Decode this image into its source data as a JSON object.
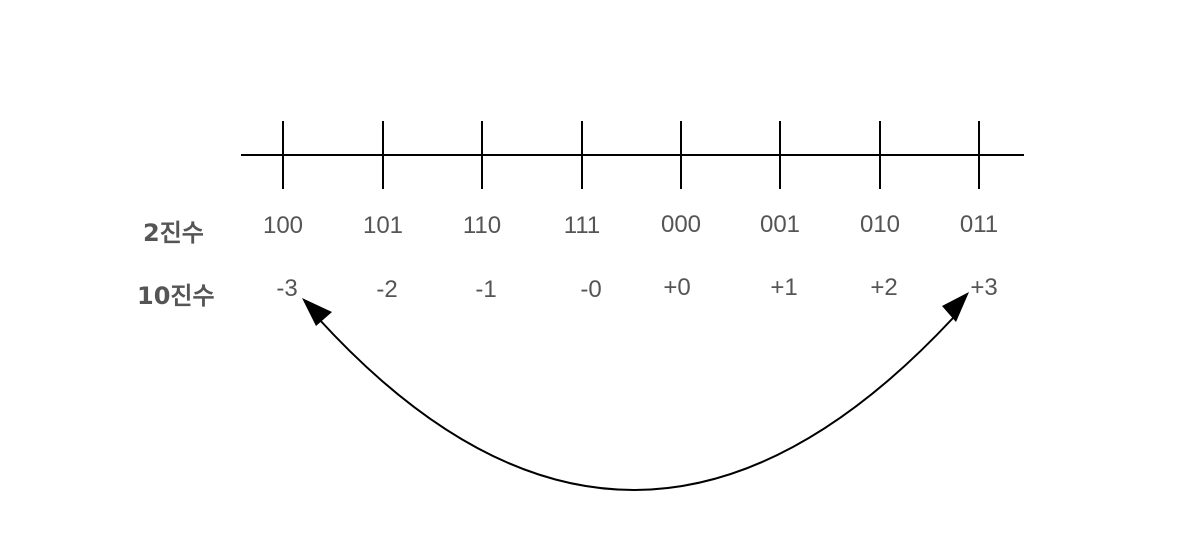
{
  "labels": {
    "binary": "2진수",
    "decimal": "10진수"
  },
  "binary_values": [
    "100",
    "101",
    "110",
    "111",
    "000",
    "001",
    "010",
    "011"
  ],
  "decimal_values": [
    "-3",
    "-2",
    "-1",
    "-0",
    "+0",
    "+1",
    "+2",
    "+3"
  ],
  "colors": {
    "line": "#000000",
    "text": "#555555"
  }
}
